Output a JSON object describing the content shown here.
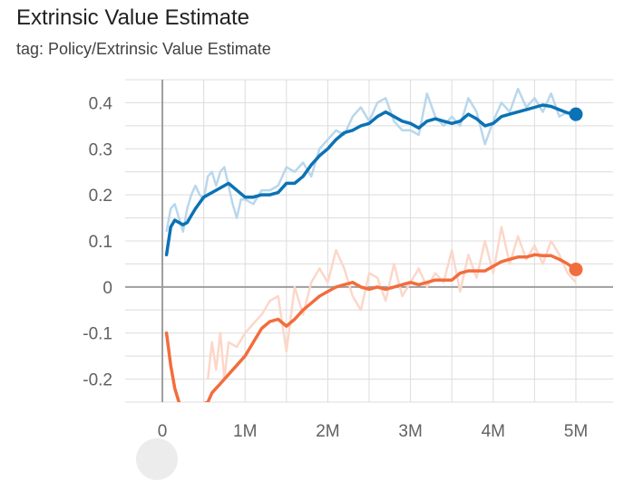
{
  "card": {
    "title": "Extrinsic Value Estimate",
    "subtitle": "tag: Policy/Extrinsic Value Estimate"
  },
  "chart_data": {
    "type": "line",
    "title": "Extrinsic Value Estimate",
    "xlabel": "",
    "ylabel": "",
    "xlim": [
      -0.45,
      5.45
    ],
    "ylim": [
      -0.25,
      0.45
    ],
    "x_ticks": [
      {
        "value": 0,
        "label": "0"
      },
      {
        "value": 1,
        "label": "1M"
      },
      {
        "value": 2,
        "label": "2M"
      },
      {
        "value": 3,
        "label": "3M"
      },
      {
        "value": 4,
        "label": "4M"
      },
      {
        "value": 5,
        "label": "5M"
      }
    ],
    "y_ticks": [
      {
        "value": 0.4,
        "label": "0.4"
      },
      {
        "value": 0.3,
        "label": "0.3"
      },
      {
        "value": 0.2,
        "label": "0.2"
      },
      {
        "value": 0.1,
        "label": "0.1"
      },
      {
        "value": 0,
        "label": "0"
      },
      {
        "value": -0.1,
        "label": "-0.1"
      },
      {
        "value": -0.2,
        "label": "-0.2"
      }
    ],
    "grid": true,
    "series": [
      {
        "color": "#0b72b5",
        "raw_color": "#b9d7ec",
        "smoothed": {
          "x": [
            0.05,
            0.1,
            0.15,
            0.2,
            0.25,
            0.3,
            0.35,
            0.4,
            0.5,
            0.6,
            0.7,
            0.8,
            0.9,
            1.0,
            1.1,
            1.2,
            1.3,
            1.4,
            1.5,
            1.6,
            1.7,
            1.8,
            1.9,
            2.0,
            2.1,
            2.2,
            2.3,
            2.4,
            2.5,
            2.6,
            2.7,
            2.8,
            2.9,
            3.0,
            3.1,
            3.2,
            3.3,
            3.4,
            3.5,
            3.6,
            3.7,
            3.8,
            3.9,
            4.0,
            4.1,
            4.2,
            4.3,
            4.4,
            4.5,
            4.6,
            4.7,
            4.8,
            4.9,
            5.0
          ],
          "y": [
            0.07,
            0.13,
            0.145,
            0.14,
            0.135,
            0.14,
            0.155,
            0.17,
            0.195,
            0.205,
            0.215,
            0.225,
            0.21,
            0.195,
            0.195,
            0.2,
            0.2,
            0.205,
            0.225,
            0.225,
            0.24,
            0.265,
            0.285,
            0.3,
            0.32,
            0.335,
            0.34,
            0.35,
            0.355,
            0.37,
            0.38,
            0.37,
            0.36,
            0.355,
            0.345,
            0.36,
            0.365,
            0.36,
            0.355,
            0.36,
            0.375,
            0.365,
            0.35,
            0.355,
            0.37,
            0.375,
            0.38,
            0.385,
            0.39,
            0.395,
            0.392,
            0.385,
            0.378,
            0.375
          ]
        },
        "raw": {
          "x": [
            0.05,
            0.1,
            0.15,
            0.2,
            0.25,
            0.3,
            0.35,
            0.4,
            0.45,
            0.5,
            0.55,
            0.6,
            0.65,
            0.7,
            0.75,
            0.8,
            0.85,
            0.9,
            0.95,
            1.0,
            1.1,
            1.2,
            1.3,
            1.4,
            1.5,
            1.6,
            1.7,
            1.8,
            1.9,
            2.0,
            2.1,
            2.2,
            2.3,
            2.4,
            2.5,
            2.6,
            2.7,
            2.8,
            2.9,
            3.0,
            3.1,
            3.2,
            3.3,
            3.4,
            3.5,
            3.6,
            3.7,
            3.8,
            3.9,
            4.0,
            4.1,
            4.15,
            4.2,
            4.3,
            4.4,
            4.5,
            4.6,
            4.7,
            4.8,
            4.9,
            5.0
          ],
          "y": [
            0.12,
            0.17,
            0.18,
            0.15,
            0.12,
            0.17,
            0.2,
            0.22,
            0.2,
            0.19,
            0.24,
            0.25,
            0.22,
            0.25,
            0.26,
            0.22,
            0.18,
            0.15,
            0.19,
            0.19,
            0.18,
            0.21,
            0.21,
            0.22,
            0.26,
            0.25,
            0.27,
            0.24,
            0.3,
            0.32,
            0.34,
            0.33,
            0.37,
            0.39,
            0.36,
            0.4,
            0.41,
            0.36,
            0.34,
            0.34,
            0.33,
            0.42,
            0.37,
            0.35,
            0.37,
            0.35,
            0.41,
            0.38,
            0.31,
            0.36,
            0.4,
            0.39,
            0.38,
            0.43,
            0.39,
            0.41,
            0.38,
            0.42,
            0.37,
            0.38,
            0.36
          ]
        }
      },
      {
        "color": "#f26d3d",
        "raw_color": "#fcd7c9",
        "smoothed": {
          "x": [
            0.05,
            0.1,
            0.15,
            0.2,
            0.25,
            0.55,
            0.6,
            0.65,
            0.7,
            0.75,
            0.8,
            0.9,
            1.0,
            1.1,
            1.2,
            1.3,
            1.4,
            1.5,
            1.6,
            1.7,
            1.8,
            1.9,
            2.0,
            2.1,
            2.2,
            2.3,
            2.4,
            2.5,
            2.6,
            2.7,
            2.8,
            2.9,
            3.0,
            3.1,
            3.2,
            3.3,
            3.4,
            3.5,
            3.6,
            3.7,
            3.8,
            3.9,
            4.0,
            4.1,
            4.2,
            4.3,
            4.4,
            4.5,
            4.6,
            4.7,
            4.8,
            4.9,
            5.0
          ],
          "y": [
            -0.1,
            -0.17,
            -0.22,
            -0.25,
            -0.27,
            -0.25,
            -0.23,
            -0.22,
            -0.21,
            -0.2,
            -0.19,
            -0.17,
            -0.15,
            -0.12,
            -0.09,
            -0.075,
            -0.07,
            -0.085,
            -0.07,
            -0.05,
            -0.035,
            -0.02,
            -0.01,
            0.0,
            0.005,
            0.01,
            0.0,
            -0.005,
            0.0,
            -0.005,
            0.0,
            0.005,
            0.01,
            0.005,
            0.01,
            0.015,
            0.015,
            0.015,
            0.03,
            0.035,
            0.035,
            0.035,
            0.045,
            0.055,
            0.06,
            0.065,
            0.065,
            0.07,
            0.068,
            0.068,
            0.06,
            0.05,
            0.038
          ]
        },
        "raw": {
          "x": [
            0.55,
            0.6,
            0.65,
            0.7,
            0.75,
            0.8,
            0.9,
            1.0,
            1.1,
            1.2,
            1.3,
            1.4,
            1.5,
            1.6,
            1.7,
            1.8,
            1.9,
            2.0,
            2.1,
            2.2,
            2.3,
            2.4,
            2.5,
            2.6,
            2.7,
            2.8,
            2.9,
            3.0,
            3.1,
            3.2,
            3.3,
            3.4,
            3.5,
            3.6,
            3.7,
            3.8,
            3.9,
            4.0,
            4.1,
            4.2,
            4.3,
            4.4,
            4.5,
            4.6,
            4.7,
            4.8,
            4.9,
            5.0
          ],
          "y": [
            -0.2,
            -0.12,
            -0.18,
            -0.1,
            -0.2,
            -0.12,
            -0.13,
            -0.1,
            -0.08,
            -0.06,
            -0.03,
            -0.02,
            -0.14,
            0.0,
            -0.06,
            0.01,
            0.04,
            0.01,
            0.08,
            0.04,
            -0.02,
            -0.05,
            0.03,
            0.02,
            -0.03,
            0.05,
            -0.02,
            0.01,
            0.04,
            0.0,
            0.03,
            0.01,
            0.08,
            -0.01,
            0.07,
            0.02,
            0.1,
            0.03,
            0.13,
            0.05,
            0.11,
            0.06,
            0.09,
            0.05,
            0.1,
            0.07,
            0.03,
            0.01
          ]
        }
      }
    ]
  }
}
